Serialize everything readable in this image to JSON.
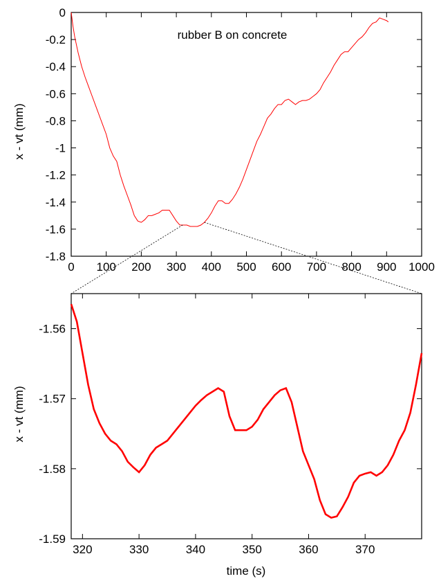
{
  "chart_data": [
    {
      "type": "line",
      "title": "",
      "annotation": "rubber B on concrete",
      "xlabel": "",
      "ylabel": "x - vt  (mm)",
      "xlim": [
        0,
        1000
      ],
      "ylim": [
        -1.8,
        0
      ],
      "xticks": [
        0,
        100,
        200,
        300,
        400,
        500,
        600,
        700,
        800,
        900,
        1000
      ],
      "yticks": [
        0,
        -0.2,
        -0.4,
        -0.6,
        -0.8,
        -1,
        -1.2,
        -1.4,
        -1.6,
        -1.8
      ],
      "xtick_labels": [
        "0",
        "100",
        "200",
        "300",
        "400",
        "500",
        "600",
        "700",
        "800",
        "900",
        "1000"
      ],
      "ytick_labels": [
        "0",
        "-0.2",
        "-0.4",
        "-0.6",
        "-0.8",
        "-1",
        "-1.2",
        "-1.4",
        "-1.6",
        "-1.8"
      ],
      "grid": false,
      "series": [
        {
          "color": "#ff0000",
          "x": [
            0,
            5,
            10,
            20,
            30,
            40,
            50,
            60,
            70,
            80,
            90,
            100,
            110,
            120,
            130,
            140,
            150,
            160,
            170,
            180,
            190,
            200,
            210,
            220,
            230,
            240,
            250,
            260,
            270,
            280,
            290,
            300,
            310,
            320,
            330,
            340,
            350,
            360,
            370,
            380,
            390,
            400,
            410,
            420,
            430,
            440,
            450,
            460,
            470,
            480,
            490,
            500,
            510,
            520,
            530,
            540,
            550,
            560,
            570,
            580,
            590,
            600,
            610,
            620,
            630,
            640,
            650,
            660,
            670,
            680,
            690,
            700,
            710,
            720,
            730,
            740,
            750,
            760,
            770,
            780,
            790,
            800,
            810,
            820,
            830,
            840,
            850,
            860,
            870,
            880,
            890,
            900,
            905
          ],
          "y": [
            0,
            -0.1,
            -0.18,
            -0.3,
            -0.4,
            -0.48,
            -0.55,
            -0.62,
            -0.69,
            -0.76,
            -0.83,
            -0.9,
            -1.0,
            -1.06,
            -1.1,
            -1.2,
            -1.28,
            -1.35,
            -1.42,
            -1.5,
            -1.54,
            -1.55,
            -1.53,
            -1.5,
            -1.5,
            -1.49,
            -1.48,
            -1.46,
            -1.46,
            -1.46,
            -1.5,
            -1.54,
            -1.57,
            -1.57,
            -1.57,
            -1.58,
            -1.58,
            -1.58,
            -1.57,
            -1.55,
            -1.52,
            -1.48,
            -1.43,
            -1.39,
            -1.39,
            -1.41,
            -1.41,
            -1.38,
            -1.34,
            -1.29,
            -1.23,
            -1.16,
            -1.09,
            -1.02,
            -0.95,
            -0.9,
            -0.84,
            -0.78,
            -0.75,
            -0.71,
            -0.68,
            -0.68,
            -0.65,
            -0.64,
            -0.66,
            -0.68,
            -0.66,
            -0.65,
            -0.65,
            -0.64,
            -0.62,
            -0.6,
            -0.57,
            -0.52,
            -0.48,
            -0.44,
            -0.39,
            -0.35,
            -0.31,
            -0.29,
            -0.29,
            -0.26,
            -0.23,
            -0.2,
            -0.18,
            -0.15,
            -0.11,
            -0.08,
            -0.07,
            -0.04,
            -0.05,
            -0.06,
            -0.07
          ]
        }
      ]
    },
    {
      "type": "line",
      "title": "",
      "xlabel": "time  (s)",
      "ylabel": "x - vt  (mm)",
      "xlim": [
        318,
        380
      ],
      "ylim": [
        -1.59,
        -1.555
      ],
      "xticks": [
        320,
        330,
        340,
        350,
        360,
        370
      ],
      "yticks": [
        -1.56,
        -1.57,
        -1.58,
        -1.59
      ],
      "xtick_labels": [
        "320",
        "330",
        "340",
        "350",
        "360",
        "370"
      ],
      "ytick_labels": [
        "-1.56",
        "-1.57",
        "-1.58",
        "-1.59"
      ],
      "grid": false,
      "series": [
        {
          "color": "#ff0000",
          "x": [
            318,
            319,
            320,
            321,
            322,
            323,
            324,
            325,
            326,
            327,
            328,
            329,
            330,
            331,
            332,
            333,
            334,
            335,
            336,
            337,
            338,
            339,
            340,
            341,
            342,
            343,
            344,
            345,
            346,
            347,
            348,
            349,
            350,
            351,
            352,
            353,
            354,
            355,
            356,
            357,
            358,
            359,
            360,
            361,
            362,
            363,
            364,
            365,
            366,
            367,
            368,
            369,
            370,
            371,
            372,
            373,
            374,
            375,
            376,
            377,
            378,
            379,
            380
          ],
          "y": [
            -1.5565,
            -1.559,
            -1.5635,
            -1.568,
            -1.5715,
            -1.5735,
            -1.575,
            -1.576,
            -1.5765,
            -1.5775,
            -1.579,
            -1.5798,
            -1.5805,
            -1.5795,
            -1.578,
            -1.577,
            -1.5765,
            -1.576,
            -1.575,
            -1.574,
            -1.573,
            -1.572,
            -1.571,
            -1.5702,
            -1.5695,
            -1.569,
            -1.5685,
            -1.569,
            -1.5725,
            -1.5745,
            -1.5745,
            -1.5745,
            -1.574,
            -1.573,
            -1.5715,
            -1.5705,
            -1.5695,
            -1.5688,
            -1.5685,
            -1.5705,
            -1.574,
            -1.5775,
            -1.5795,
            -1.5815,
            -1.5845,
            -1.5865,
            -1.587,
            -1.5868,
            -1.5855,
            -1.584,
            -1.582,
            -1.581,
            -1.5807,
            -1.5805,
            -1.581,
            -1.5805,
            -1.5795,
            -1.578,
            -1.576,
            -1.5745,
            -1.572,
            -1.568,
            -1.5635
          ]
        }
      ]
    }
  ]
}
